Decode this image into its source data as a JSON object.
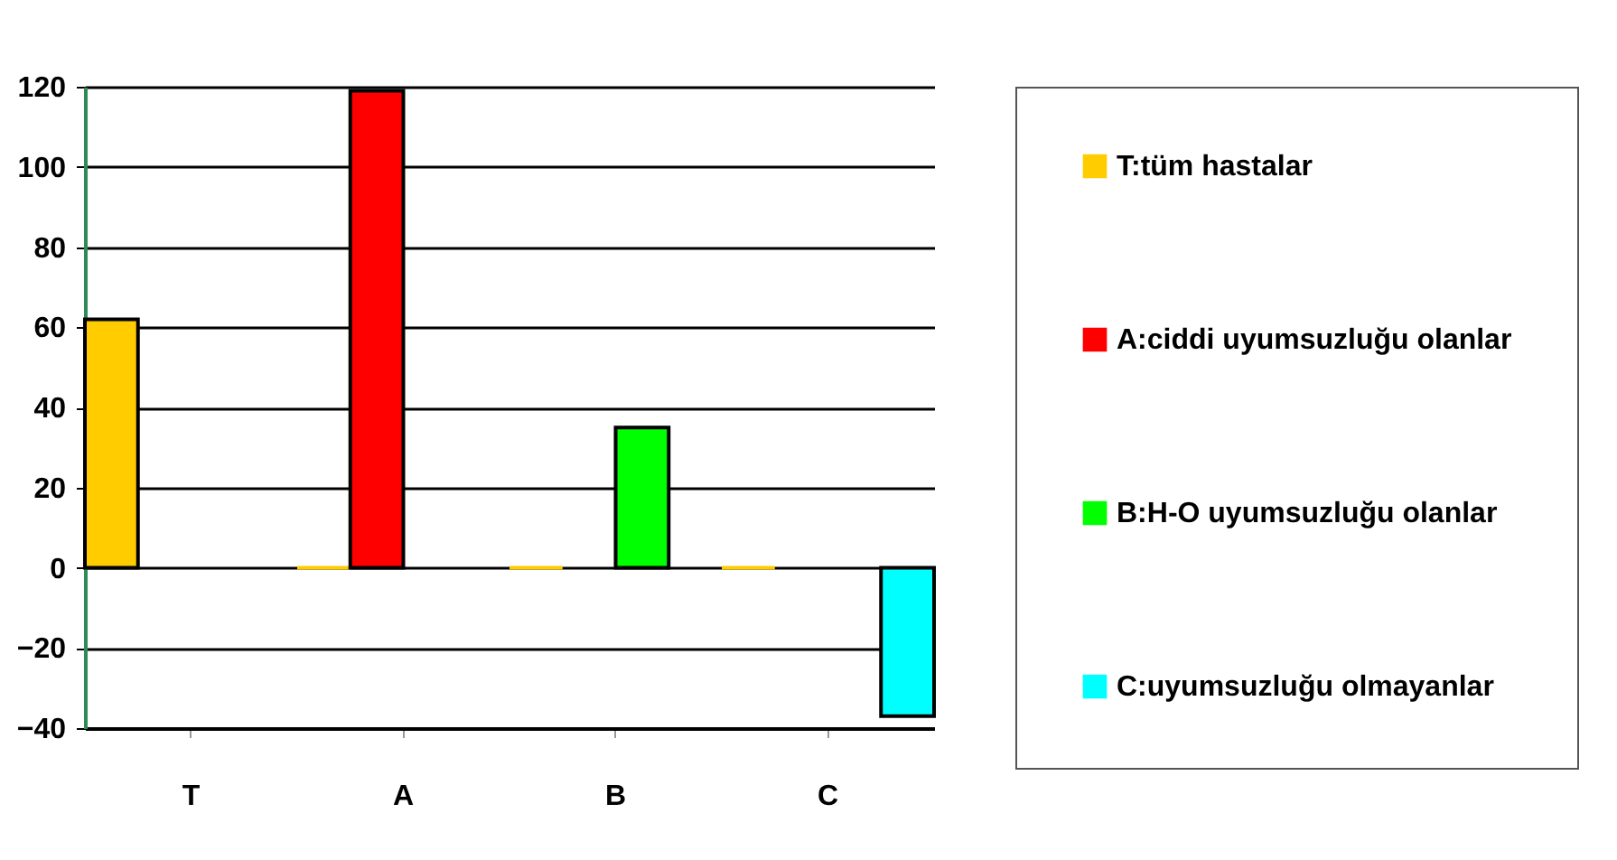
{
  "chart_data": {
    "type": "bar",
    "categories": [
      "T",
      "A",
      "B",
      "C"
    ],
    "series": [
      {
        "name": "T:tüm hastalar",
        "color": "#ffcc00",
        "values": [
          62,
          0,
          0,
          0
        ]
      },
      {
        "name": "A:ciddi uyumsuzluğu olanlar",
        "color": "#ff0000",
        "values": [
          null,
          119,
          null,
          null
        ]
      },
      {
        "name": "B:H-O uyumsuzluğu olanlar",
        "color": "#00ff00",
        "values": [
          null,
          null,
          35,
          null
        ]
      },
      {
        "name": "C:uyumsuzluğu olmayanlar",
        "color": "#00ffff",
        "values": [
          null,
          null,
          null,
          -37
        ]
      }
    ],
    "ylim": [
      -40,
      120
    ],
    "yticks": [
      -40,
      -20,
      0,
      20,
      40,
      60,
      80,
      100,
      120
    ],
    "grid": "y",
    "legend": "right"
  }
}
